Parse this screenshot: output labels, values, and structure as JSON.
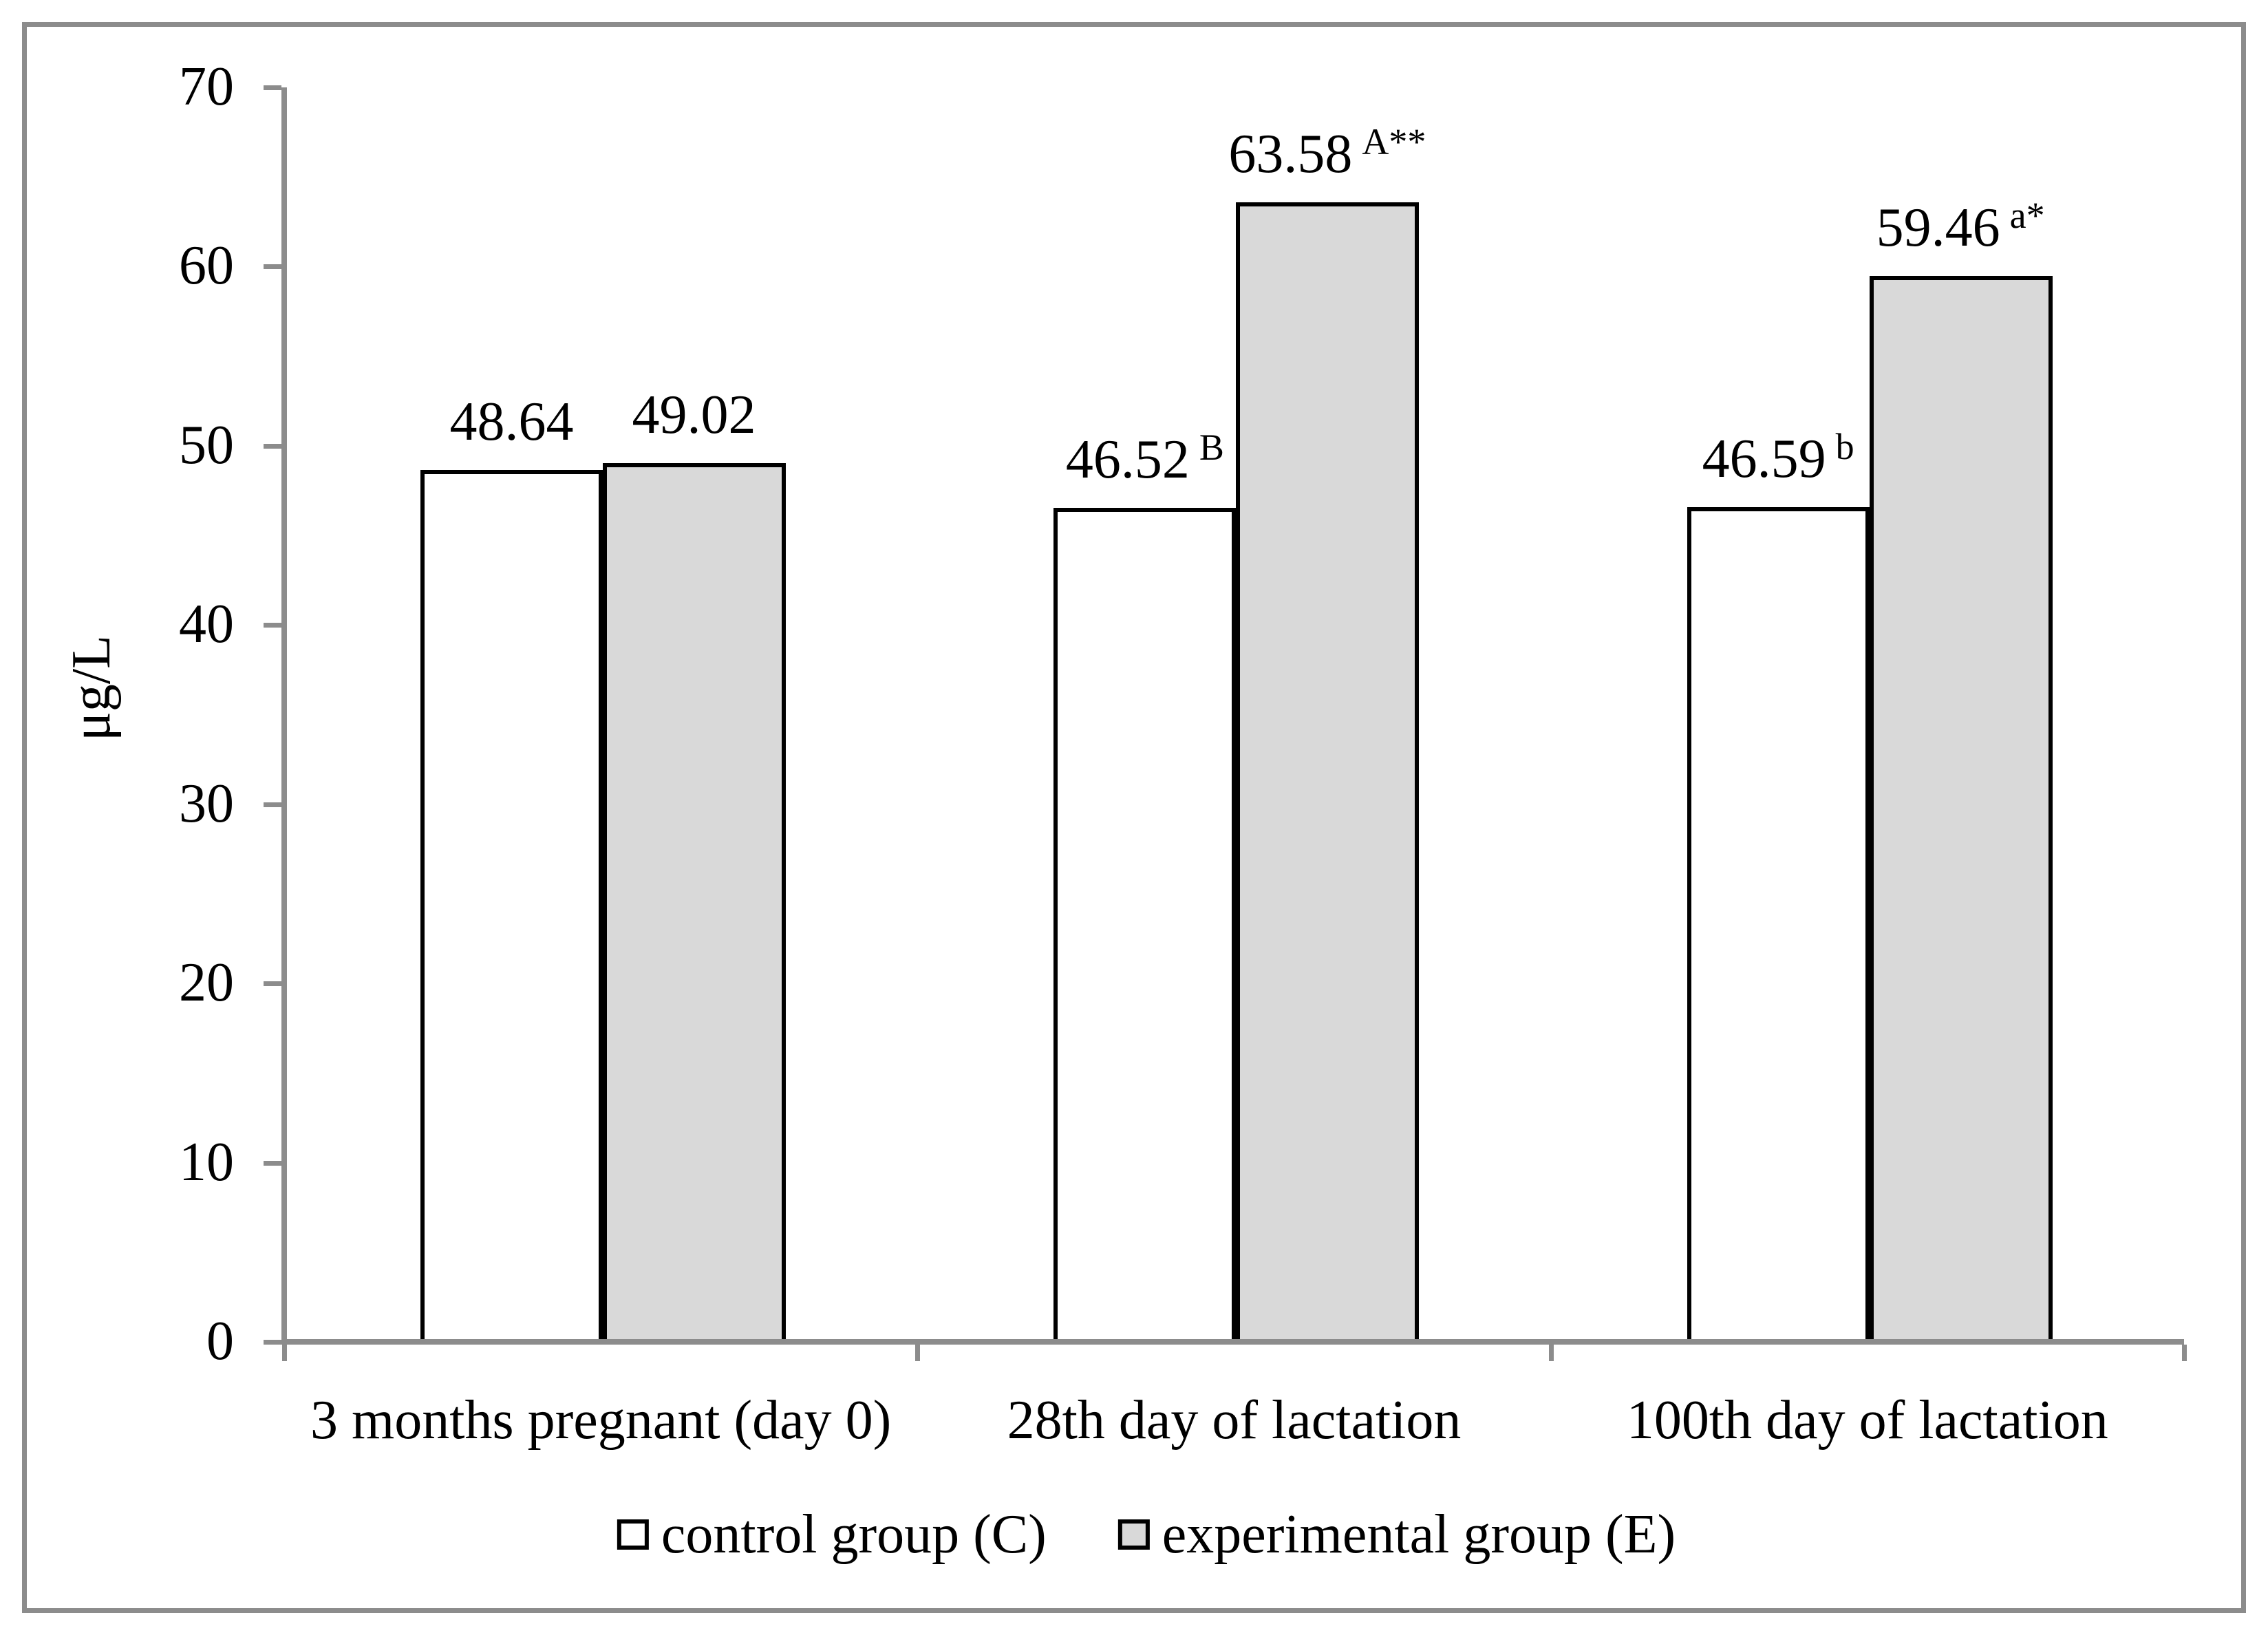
{
  "chart_data": {
    "type": "bar",
    "title": "",
    "xlabel": "",
    "ylabel": "μg/L",
    "ylim": [
      0,
      70
    ],
    "yticks": [
      "0",
      "10",
      "20",
      "30",
      "40",
      "50",
      "60",
      "70"
    ],
    "grid": false,
    "legend_position": "bottom-center",
    "categories": [
      "3 months pregnant (day 0)",
      "28th day of lactation",
      "100th day of lactation"
    ],
    "series": [
      {
        "name": "control group (C)",
        "fill": "#ffffff",
        "values": [
          48.64,
          46.52,
          46.59
        ],
        "point_labels": [
          {
            "text": "48.64",
            "sup": ""
          },
          {
            "text": "46.52",
            "sup": "B"
          },
          {
            "text": "46.59",
            "sup": "b"
          }
        ]
      },
      {
        "name": "experimental group (E)",
        "fill": "#d9d9d9",
        "values": [
          49.02,
          63.58,
          59.46
        ],
        "point_labels": [
          {
            "text": "49.02",
            "sup": ""
          },
          {
            "text": "63.58",
            "sup": "A**"
          },
          {
            "text": "59.46",
            "sup": "a*"
          }
        ]
      }
    ]
  },
  "colors": {
    "background": "#ffffff",
    "figure_border": "#8c8c8c",
    "axis": "#8c8c8c",
    "bar_border": "#000000",
    "text": "#000000",
    "control_fill": "#ffffff",
    "experimental_fill": "#d9d9d9"
  }
}
